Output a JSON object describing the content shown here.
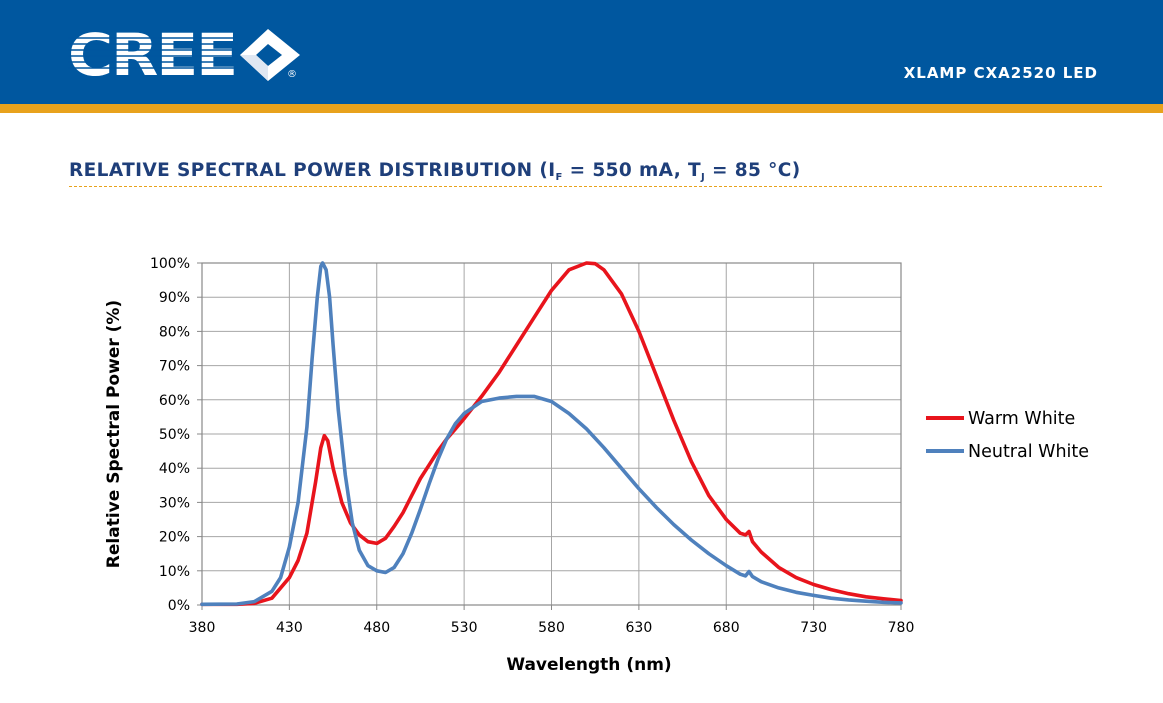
{
  "header": {
    "brand": "CREE",
    "product": "XLAMP CXA2520 LED",
    "colors": {
      "bar": "#00579f",
      "stripe": "#e8a21c"
    }
  },
  "section": {
    "title_prefix": "RELATIVE SPECTRAL POWER DISTRIBUTION (I",
    "title_sub1": "F",
    "title_mid": " = 550 mA, T",
    "title_sub2": "J",
    "title_suffix": " = 85 °C)"
  },
  "chart_data": {
    "type": "line",
    "xlabel": "Wavelength (nm)",
    "ylabel": "Relative Spectral Power (%)",
    "xlim": [
      380,
      780
    ],
    "ylim": [
      0,
      100
    ],
    "x_ticks": [
      380,
      430,
      480,
      530,
      580,
      630,
      680,
      730,
      780
    ],
    "y_ticks": [
      0,
      10,
      20,
      30,
      40,
      50,
      60,
      70,
      80,
      90,
      100
    ],
    "x_tick_labels": [
      "380",
      "430",
      "480",
      "530",
      "580",
      "630",
      "680",
      "730",
      "780"
    ],
    "y_tick_labels": [
      "0%",
      "10%",
      "20%",
      "30%",
      "40%",
      "50%",
      "60%",
      "70%",
      "80%",
      "90%",
      "100%"
    ],
    "grid": true,
    "legend": "right",
    "series": [
      {
        "name": "Warm White",
        "color": "#e8141c",
        "points": [
          [
            380,
            0.2
          ],
          [
            400,
            0.2
          ],
          [
            410,
            0.5
          ],
          [
            420,
            2
          ],
          [
            430,
            8
          ],
          [
            435,
            13
          ],
          [
            440,
            21
          ],
          [
            445,
            36
          ],
          [
            448,
            46
          ],
          [
            450,
            49.5
          ],
          [
            452,
            48
          ],
          [
            455,
            40
          ],
          [
            460,
            30
          ],
          [
            465,
            24
          ],
          [
            470,
            20.5
          ],
          [
            475,
            18.5
          ],
          [
            480,
            18
          ],
          [
            485,
            19.5
          ],
          [
            490,
            23
          ],
          [
            495,
            27
          ],
          [
            500,
            32
          ],
          [
            505,
            37
          ],
          [
            510,
            41
          ],
          [
            515,
            45
          ],
          [
            520,
            48.5
          ],
          [
            525,
            51.5
          ],
          [
            530,
            54.5
          ],
          [
            540,
            61
          ],
          [
            550,
            68
          ],
          [
            560,
            76
          ],
          [
            570,
            84
          ],
          [
            580,
            92
          ],
          [
            590,
            98
          ],
          [
            600,
            100
          ],
          [
            605,
            99.8
          ],
          [
            610,
            98
          ],
          [
            620,
            91
          ],
          [
            630,
            80
          ],
          [
            640,
            67
          ],
          [
            650,
            54
          ],
          [
            660,
            42
          ],
          [
            670,
            32
          ],
          [
            680,
            25
          ],
          [
            688,
            21
          ],
          [
            691,
            20.5
          ],
          [
            693,
            21.5
          ],
          [
            695,
            18.5
          ],
          [
            700,
            15.5
          ],
          [
            710,
            11
          ],
          [
            720,
            8
          ],
          [
            730,
            6
          ],
          [
            740,
            4.5
          ],
          [
            750,
            3.3
          ],
          [
            760,
            2.4
          ],
          [
            770,
            1.8
          ],
          [
            780,
            1.3
          ]
        ]
      },
      {
        "name": "Neutral White",
        "color": "#4f81bd",
        "points": [
          [
            380,
            0.2
          ],
          [
            400,
            0.3
          ],
          [
            410,
            1
          ],
          [
            420,
            4
          ],
          [
            425,
            8
          ],
          [
            430,
            17
          ],
          [
            435,
            30
          ],
          [
            440,
            52
          ],
          [
            443,
            72
          ],
          [
            446,
            90
          ],
          [
            448,
            99
          ],
          [
            449,
            100
          ],
          [
            451,
            98
          ],
          [
            453,
            90
          ],
          [
            455,
            76
          ],
          [
            458,
            57
          ],
          [
            462,
            38
          ],
          [
            466,
            24
          ],
          [
            470,
            16
          ],
          [
            475,
            11.5
          ],
          [
            480,
            10
          ],
          [
            485,
            9.5
          ],
          [
            490,
            11
          ],
          [
            495,
            15
          ],
          [
            500,
            21
          ],
          [
            505,
            28
          ],
          [
            510,
            35.5
          ],
          [
            515,
            42.5
          ],
          [
            520,
            48.5
          ],
          [
            525,
            53
          ],
          [
            530,
            56
          ],
          [
            540,
            59.5
          ],
          [
            550,
            60.5
          ],
          [
            560,
            61
          ],
          [
            570,
            61
          ],
          [
            580,
            59.5
          ],
          [
            590,
            56
          ],
          [
            600,
            51.5
          ],
          [
            610,
            46
          ],
          [
            620,
            40
          ],
          [
            630,
            34
          ],
          [
            640,
            28.5
          ],
          [
            650,
            23.5
          ],
          [
            660,
            19
          ],
          [
            670,
            15
          ],
          [
            680,
            11.5
          ],
          [
            688,
            9
          ],
          [
            691,
            8.5
          ],
          [
            693,
            9.8
          ],
          [
            695,
            8.3
          ],
          [
            700,
            6.8
          ],
          [
            710,
            5
          ],
          [
            720,
            3.7
          ],
          [
            730,
            2.8
          ],
          [
            740,
            2
          ],
          [
            750,
            1.5
          ],
          [
            760,
            1.1
          ],
          [
            770,
            0.8
          ],
          [
            780,
            0.6
          ]
        ]
      }
    ]
  }
}
